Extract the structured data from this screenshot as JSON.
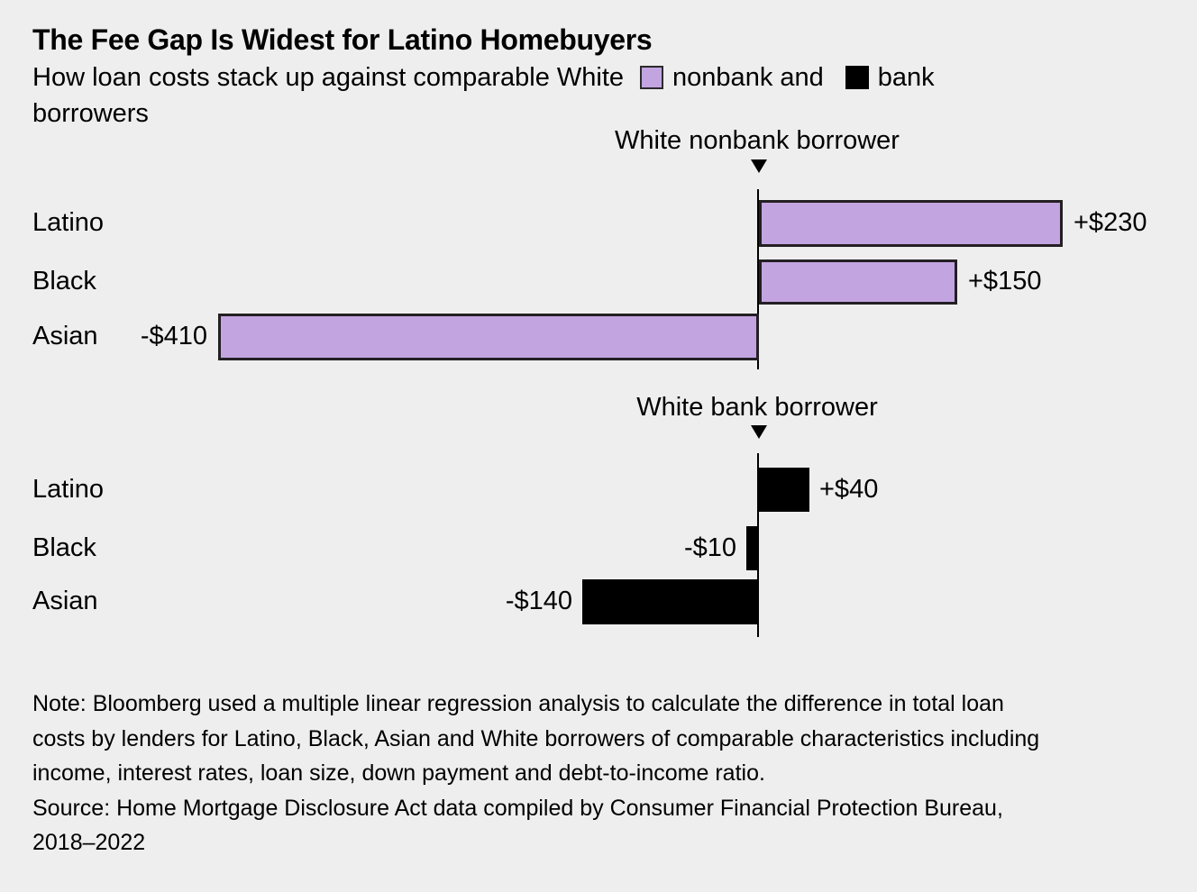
{
  "title": "The Fee Gap Is Widest for Latino Homebuyers",
  "subtitle": {
    "line1_text": "How loan costs stack up against comparable White",
    "nonbank_label": "nonbank and",
    "bank_label": "bank",
    "line2_text": "borrowers"
  },
  "colors": {
    "background": "#eeeeee",
    "nonbank": "#c2a4e0",
    "bank": "#000000",
    "bar_border": "#231f23",
    "text": "#000000"
  },
  "chart_data": [
    {
      "type": "bar",
      "orientation": "horizontal",
      "group_title": "White nonbank borrower",
      "series_name": "nonbank",
      "unit": "USD",
      "categories": [
        "Latino",
        "Black",
        "Asian"
      ],
      "values": [
        230,
        150,
        -410
      ],
      "value_labels": [
        "+$230",
        "+$150",
        "-$410"
      ],
      "baseline_value": 0,
      "color": "#c2a4e0",
      "border_color": "#231f23"
    },
    {
      "type": "bar",
      "orientation": "horizontal",
      "group_title": "White bank borrower",
      "series_name": "bank",
      "unit": "USD",
      "categories": [
        "Latino",
        "Black",
        "Asian"
      ],
      "values": [
        40,
        -10,
        -140
      ],
      "value_labels": [
        "+$40",
        "-$10",
        "-$140"
      ],
      "baseline_value": 0,
      "color": "#000000",
      "border_color": ""
    }
  ],
  "notes": {
    "note_lines": [
      "Note: Bloomberg used a multiple linear regression analysis to calculate the difference in total loan",
      "costs by lenders for Latino, Black, Asian and White borrowers of comparable characteristics including",
      "income, interest rates, loan size, down payment and debt-to-income ratio."
    ],
    "source_lines": [
      "Source: Home Mortgage Disclosure Act data compiled by Consumer Financial Protection Bureau,",
      "2018–2022"
    ]
  }
}
